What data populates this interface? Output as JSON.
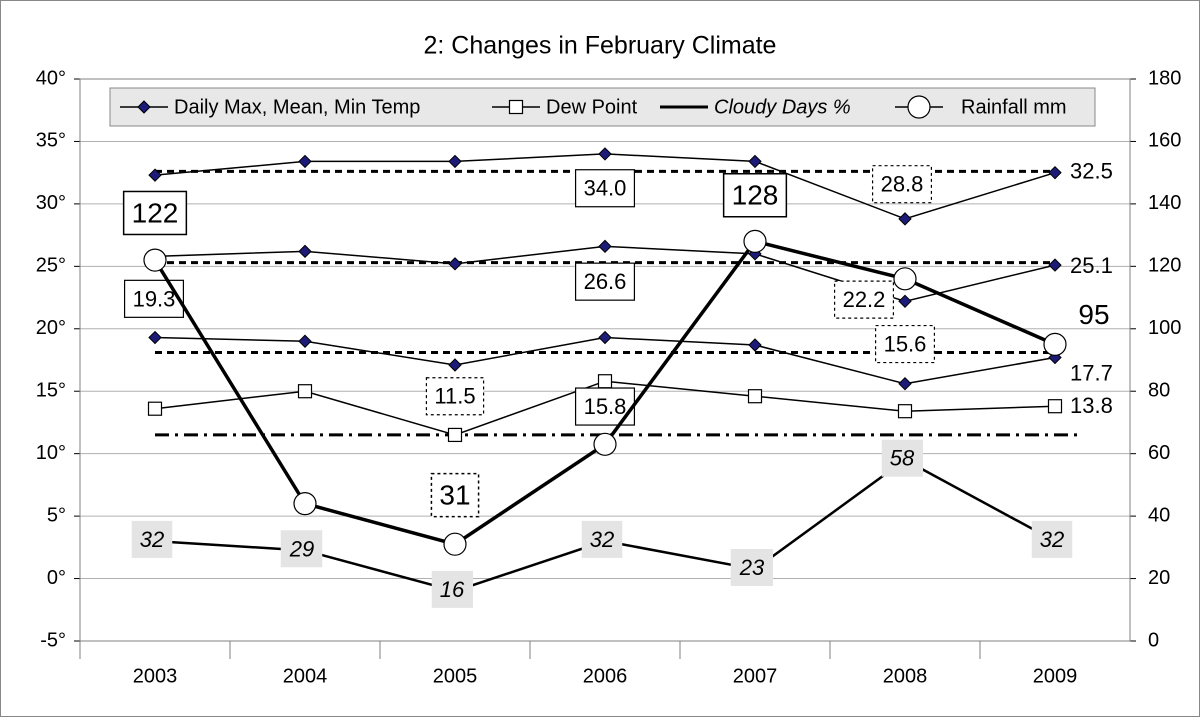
{
  "chart_data": {
    "type": "line",
    "title": "2: Changes in February Climate",
    "categories": [
      "2003",
      "2004",
      "2005",
      "2006",
      "2007",
      "2008",
      "2009"
    ],
    "ylim": [
      -5,
      40
    ],
    "yticks": [
      {
        "value": -5,
        "label": "-5°"
      },
      {
        "value": 0,
        "label": "0°"
      },
      {
        "value": 5,
        "label": "5°"
      },
      {
        "value": 10,
        "label": "10°"
      },
      {
        "value": 15,
        "label": "15°"
      },
      {
        "value": 20,
        "label": "20°"
      },
      {
        "value": 25,
        "label": "25°"
      },
      {
        "value": 30,
        "label": "30°"
      },
      {
        "value": 35,
        "label": "35°"
      },
      {
        "value": 40,
        "label": "40°"
      }
    ],
    "y2lim": [
      0,
      180
    ],
    "y2ticks": [
      0,
      20,
      40,
      60,
      80,
      100,
      120,
      140,
      160,
      180
    ],
    "grid": true,
    "legend": "top",
    "series": [
      {
        "name": "Daily Max, Mean, Min Temp",
        "color": "#1c1c78",
        "marker": "diamond",
        "lines": [
          [
            32.3,
            33.4,
            33.4,
            34.0,
            33.4,
            28.8,
            32.5
          ],
          [
            25.8,
            26.2,
            25.2,
            26.6,
            26.0,
            22.2,
            25.1
          ],
          [
            19.3,
            19.0,
            17.1,
            19.3,
            18.7,
            15.6,
            17.7
          ]
        ],
        "value_labels": [
          [
            null,
            null,
            null,
            "34.0",
            null,
            "28.8",
            "32.5"
          ],
          [
            null,
            null,
            null,
            "26.6",
            null,
            "22.2",
            "25.1"
          ],
          [
            "19.3",
            null,
            null,
            null,
            null,
            "15.6",
            "17.7"
          ]
        ]
      },
      {
        "name": "Dew Point",
        "color": "#000000",
        "marker": "square",
        "values": [
          13.6,
          15.0,
          11.5,
          15.8,
          14.6,
          13.4,
          13.8
        ],
        "value_labels": [
          null,
          null,
          "11.5",
          "15.8",
          null,
          null,
          "13.8"
        ]
      },
      {
        "name": "Cloudy Days %",
        "color": "#000000",
        "marker": "none",
        "axis": "y2",
        "italic": true,
        "values": [
          32,
          29,
          16,
          32,
          23,
          58,
          32
        ]
      },
      {
        "name": "Rainfall mm",
        "color": "#000000",
        "marker": "circle",
        "axis": "y2",
        "values": [
          122,
          44,
          31,
          63,
          128,
          116,
          95
        ],
        "value_labels": [
          "122",
          null,
          "31",
          null,
          "128",
          null,
          "95"
        ]
      }
    ],
    "average_lines": [
      {
        "value": 32.6,
        "style": "dash"
      },
      {
        "value": 25.3,
        "style": "dash"
      },
      {
        "value": 18.1,
        "style": "dash"
      },
      {
        "value": 11.5,
        "style": "dash-dot"
      }
    ]
  }
}
